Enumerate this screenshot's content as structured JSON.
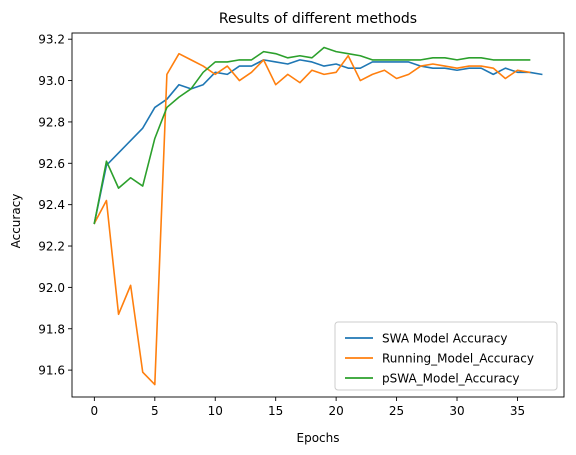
{
  "chart_data": {
    "type": "line",
    "title": "Results of different methods",
    "xlabel": "Epochs",
    "ylabel": "Accuracy",
    "xlim": [
      -1.85,
      38.85
    ],
    "ylim": [
      91.47,
      93.23
    ],
    "xticks": [
      0,
      5,
      10,
      15,
      20,
      25,
      30,
      35
    ],
    "yticks": [
      91.6,
      91.8,
      92.0,
      92.2,
      92.4,
      92.6,
      92.8,
      93.0,
      93.2
    ],
    "legend_position": "lower-right",
    "grid": false,
    "series": [
      {
        "name": "SWA Model Accuracy",
        "color": "#1f77b4",
        "x": [
          0,
          1,
          2,
          3,
          4,
          5,
          6,
          7,
          8,
          9,
          10,
          11,
          12,
          13,
          14,
          15,
          16,
          17,
          18,
          19,
          20,
          21,
          22,
          23,
          24,
          25,
          26,
          27,
          28,
          29,
          30,
          31,
          32,
          33,
          34,
          35,
          36,
          37
        ],
        "values": [
          92.31,
          92.59,
          92.65,
          92.71,
          92.77,
          92.87,
          92.91,
          92.98,
          92.96,
          92.98,
          93.04,
          93.03,
          93.07,
          93.07,
          93.1,
          93.09,
          93.08,
          93.1,
          93.09,
          93.07,
          93.08,
          93.06,
          93.06,
          93.09,
          93.09,
          93.09,
          93.09,
          93.07,
          93.06,
          93.06,
          93.05,
          93.06,
          93.06,
          93.03,
          93.06,
          93.04,
          93.04,
          93.03
        ]
      },
      {
        "name": "Running_Model_Accuracy",
        "color": "#ff7f0e",
        "x": [
          0,
          1,
          2,
          3,
          4,
          5,
          6,
          7,
          8,
          9,
          10,
          11,
          12,
          13,
          14,
          15,
          16,
          17,
          18,
          19,
          20,
          21,
          22,
          23,
          24,
          25,
          26,
          27,
          28,
          29,
          30,
          31,
          32,
          33,
          34,
          35,
          36
        ],
        "values": [
          92.31,
          92.42,
          91.87,
          92.01,
          91.59,
          91.53,
          93.03,
          93.13,
          93.1,
          93.07,
          93.03,
          93.07,
          93.0,
          93.04,
          93.1,
          92.98,
          93.03,
          92.99,
          93.05,
          93.03,
          93.04,
          93.12,
          93.0,
          93.03,
          93.05,
          93.01,
          93.03,
          93.07,
          93.08,
          93.07,
          93.06,
          93.07,
          93.07,
          93.06,
          93.01,
          93.05,
          93.04
        ]
      },
      {
        "name": "pSWA_Model_Accuracy",
        "color": "#2ca02c",
        "x": [
          0,
          1,
          2,
          3,
          4,
          5,
          6,
          7,
          8,
          9,
          10,
          11,
          12,
          13,
          14,
          15,
          16,
          17,
          18,
          19,
          20,
          21,
          22,
          23,
          24,
          25,
          26,
          27,
          28,
          29,
          30,
          31,
          32,
          33,
          34,
          35,
          36
        ],
        "values": [
          92.31,
          92.61,
          92.48,
          92.53,
          92.49,
          92.72,
          92.87,
          92.92,
          92.96,
          93.04,
          93.09,
          93.09,
          93.1,
          93.1,
          93.14,
          93.13,
          93.11,
          93.12,
          93.11,
          93.16,
          93.14,
          93.13,
          93.12,
          93.1,
          93.1,
          93.1,
          93.1,
          93.1,
          93.11,
          93.11,
          93.1,
          93.11,
          93.11,
          93.1,
          93.1,
          93.1,
          93.1
        ]
      }
    ]
  }
}
